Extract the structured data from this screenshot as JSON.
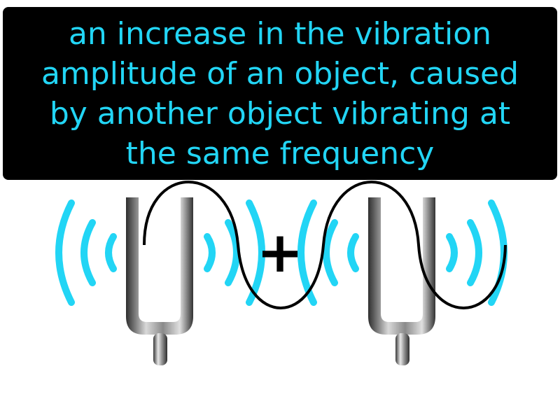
{
  "definition": {
    "lines": [
      "an increase in the vibration",
      "amplitude of an object, caused",
      "by another object vibrating at",
      "the same frequency"
    ],
    "text_color": "#22d5f5",
    "box_color": "#000000"
  },
  "illustration": {
    "wave_color": "#22d5f5",
    "plus_symbol": "+",
    "icons": [
      "tuning-fork-icon",
      "sound-wave-icon",
      "sine-wave-icon"
    ]
  }
}
